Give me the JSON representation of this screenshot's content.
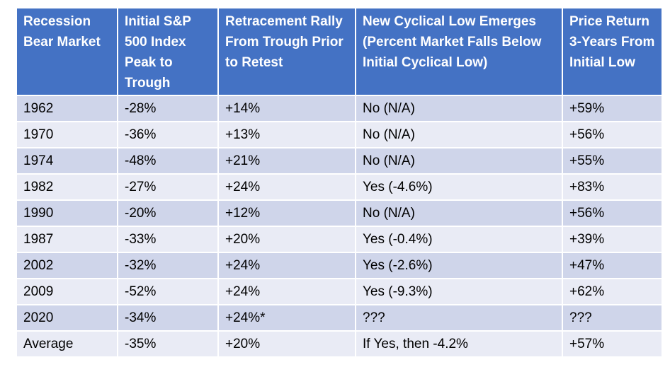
{
  "table": {
    "header": [
      "Recession Bear Market",
      "Initial S&P 500 Index Peak to Trough",
      "Retracement Rally From Trough Prior to Retest",
      "New Cyclical Low Emerges (Percent Market Falls Below Initial Cyclical Low)",
      "Price Return 3-Years From Initial Low"
    ],
    "rows": [
      [
        "1962",
        "-28%",
        "+14%",
        "No (N/A)",
        "+59%"
      ],
      [
        "1970",
        "-36%",
        "+13%",
        "No (N/A)",
        "+56%"
      ],
      [
        "1974",
        "-48%",
        "+21%",
        "No (N/A)",
        "+55%"
      ],
      [
        "1982",
        "-27%",
        "+24%",
        "Yes (-4.6%)",
        "+83%"
      ],
      [
        "1990",
        "-20%",
        "+12%",
        "No (N/A)",
        "+56%"
      ],
      [
        "1987",
        "-33%",
        "+20%",
        "Yes (-0.4%)",
        "+39%"
      ],
      [
        "2002",
        "-32%",
        "+24%",
        "Yes (-2.6%)",
        "+47%"
      ],
      [
        "2009",
        "-52%",
        "+24%",
        "Yes (-9.3%)",
        "+62%"
      ],
      [
        "2020",
        "-34%",
        "+24%*",
        "???",
        "???"
      ],
      [
        "Average",
        "-35%",
        "+20%",
        "If Yes, then -4.2%",
        "+57%"
      ]
    ]
  }
}
